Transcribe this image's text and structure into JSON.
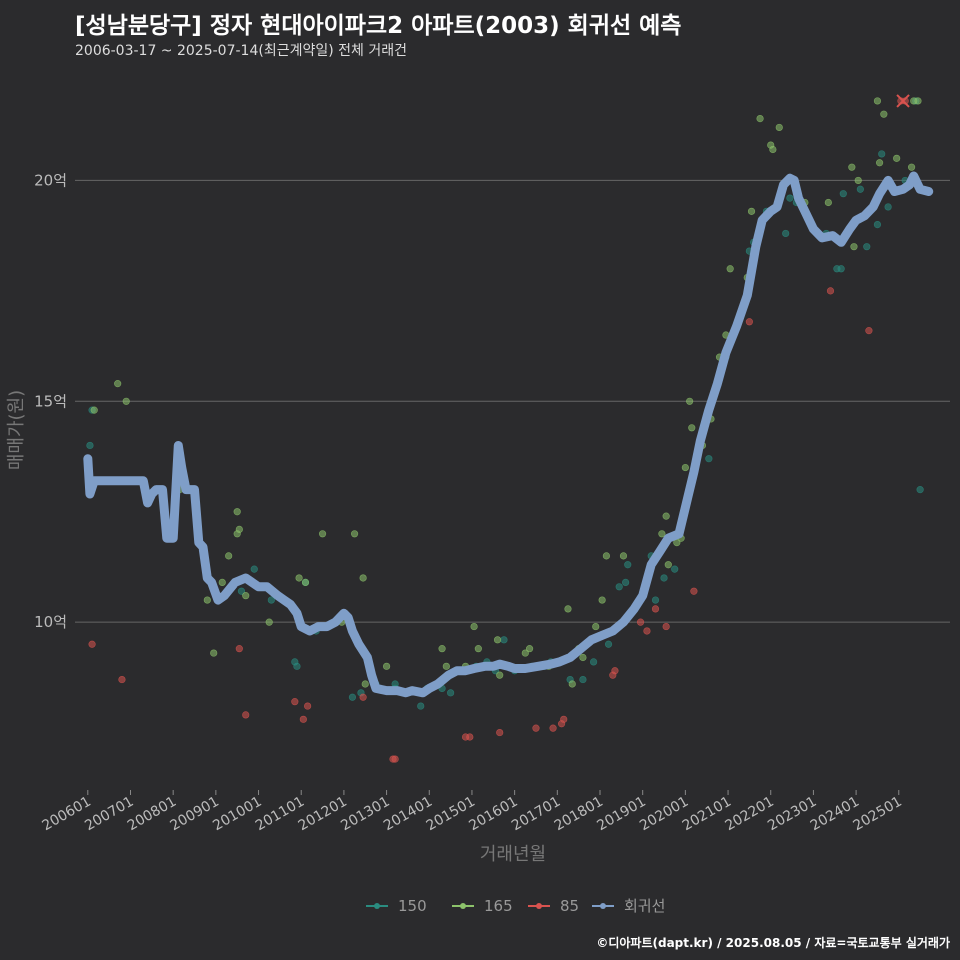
{
  "title": "[성남분당구] 정자 현대아이파크2 아파트(2003) 회귀선 예측",
  "subtitle": "2006-03-17 ~ 2025-07-14(최근계약일) 전체 거래건",
  "footer": "©디아파트(dapt.kr) / 2025.08.05 / 자료=국토교통부 실거래가",
  "colors": {
    "background": "#2b2b2d",
    "gridline": "#666666",
    "series_150": "#2a8c80",
    "series_165": "#8dc36b",
    "series_85": "#d9534f",
    "regression": "#7f9ec8"
  },
  "chart_data": {
    "type": "scatter",
    "title": "",
    "xlabel": "거래년월",
    "ylabel": "매매가(원)",
    "ylim": [
      6.2,
      22.5
    ],
    "xlim": [
      2005.7,
      2026.2
    ],
    "y_ticks": [
      {
        "value": 10,
        "label": "10억"
      },
      {
        "value": 15,
        "label": "15억"
      },
      {
        "value": 20,
        "label": "20억"
      }
    ],
    "x_ticks": [
      {
        "value": 2006,
        "label": "200601"
      },
      {
        "value": 2007,
        "label": "200701"
      },
      {
        "value": 2008,
        "label": "200801"
      },
      {
        "value": 2009,
        "label": "200901"
      },
      {
        "value": 2010,
        "label": "201001"
      },
      {
        "value": 2011,
        "label": "201101"
      },
      {
        "value": 2012,
        "label": "201201"
      },
      {
        "value": 2013,
        "label": "201301"
      },
      {
        "value": 2014,
        "label": "201401"
      },
      {
        "value": 2015,
        "label": "201501"
      },
      {
        "value": 2016,
        "label": "201601"
      },
      {
        "value": 2017,
        "label": "201701"
      },
      {
        "value": 2018,
        "label": "201801"
      },
      {
        "value": 2019,
        "label": "201901"
      },
      {
        "value": 2020,
        "label": "202001"
      },
      {
        "value": 2021,
        "label": "202101"
      },
      {
        "value": 2022,
        "label": "202201"
      },
      {
        "value": 2023,
        "label": "202301"
      },
      {
        "value": 2024,
        "label": "202401"
      },
      {
        "value": 2025,
        "label": "202501"
      }
    ],
    "legend": {
      "position": "bottom",
      "items": [
        {
          "label": "150",
          "color": "#2a8c80"
        },
        {
          "label": "165",
          "color": "#8dc36b"
        },
        {
          "label": "85",
          "color": "#d9534f"
        },
        {
          "label": "회귀선",
          "color": "#7f9ec8"
        }
      ]
    },
    "series": [
      {
        "name": "150",
        "points": [
          [
            2006.05,
            14.0
          ],
          [
            2006.1,
            14.8
          ],
          [
            2009.6,
            10.7
          ],
          [
            2009.9,
            11.2
          ],
          [
            2010.3,
            10.5
          ],
          [
            2010.85,
            9.1
          ],
          [
            2010.9,
            9.0
          ],
          [
            2011.35,
            9.8
          ],
          [
            2011.1,
            10.9
          ],
          [
            2012.4,
            8.4
          ],
          [
            2012.7,
            8.7
          ],
          [
            2012.75,
            8.6
          ],
          [
            2013.2,
            8.5
          ],
          [
            2013.2,
            8.6
          ],
          [
            2013.5,
            8.4
          ],
          [
            2013.8,
            8.1
          ],
          [
            2013.95,
            8.5
          ],
          [
            2014.3,
            8.5
          ],
          [
            2014.75,
            8.9
          ],
          [
            2015.1,
            9.0
          ],
          [
            2015.35,
            9.1
          ],
          [
            2015.55,
            8.9
          ],
          [
            2015.75,
            9.6
          ],
          [
            2016.0,
            8.9
          ],
          [
            2016.4,
            9.0
          ],
          [
            2016.7,
            9.0
          ],
          [
            2016.85,
            9.1
          ],
          [
            2017.3,
            8.7
          ],
          [
            2017.6,
            8.7
          ],
          [
            2017.85,
            9.1
          ],
          [
            2018.2,
            9.5
          ],
          [
            2018.45,
            10.8
          ],
          [
            2018.6,
            10.9
          ],
          [
            2018.65,
            11.3
          ],
          [
            2019.3,
            10.5
          ],
          [
            2019.5,
            11.0
          ],
          [
            2019.75,
            11.2
          ],
          [
            2020.1,
            13.0
          ],
          [
            2020.45,
            14.5
          ],
          [
            2020.55,
            13.7
          ],
          [
            2020.8,
            15.5
          ],
          [
            2020.95,
            16.0
          ],
          [
            2021.3,
            17.0
          ],
          [
            2021.5,
            18.4
          ],
          [
            2021.6,
            18.6
          ],
          [
            2021.9,
            19.3
          ],
          [
            2022.35,
            18.8
          ],
          [
            2022.45,
            19.6
          ],
          [
            2022.6,
            19.5
          ],
          [
            2023.3,
            18.8
          ],
          [
            2023.55,
            18.0
          ],
          [
            2023.65,
            18.0
          ],
          [
            2023.7,
            19.7
          ],
          [
            2024.1,
            19.8
          ],
          [
            2024.25,
            18.5
          ],
          [
            2024.5,
            19.0
          ],
          [
            2024.6,
            20.6
          ],
          [
            2024.75,
            19.4
          ],
          [
            2025.1,
            19.8
          ],
          [
            2025.15,
            20.0
          ],
          [
            2025.4,
            21.8
          ],
          [
            2025.5,
            13.0
          ],
          [
            2012.2,
            8.3
          ],
          [
            2019.2,
            11.5
          ],
          [
            2014.5,
            8.4
          ]
        ]
      },
      {
        "name": "165",
        "points": [
          [
            2006.15,
            14.8
          ],
          [
            2006.7,
            15.4
          ],
          [
            2006.9,
            15.0
          ],
          [
            2008.15,
            13.0
          ],
          [
            2008.8,
            10.5
          ],
          [
            2008.95,
            9.3
          ],
          [
            2009.15,
            10.9
          ],
          [
            2009.5,
            12.0
          ],
          [
            2009.55,
            12.1
          ],
          [
            2009.5,
            12.5
          ],
          [
            2009.3,
            11.5
          ],
          [
            2009.7,
            10.6
          ],
          [
            2010.25,
            10.0
          ],
          [
            2010.95,
            11.0
          ],
          [
            2011.1,
            10.9
          ],
          [
            2011.5,
            12.0
          ],
          [
            2011.95,
            10.0
          ],
          [
            2012.25,
            12.0
          ],
          [
            2012.45,
            11.0
          ],
          [
            2012.5,
            8.6
          ],
          [
            2013.0,
            9.0
          ],
          [
            2014.3,
            9.4
          ],
          [
            2014.4,
            9.0
          ],
          [
            2014.85,
            9.0
          ],
          [
            2015.05,
            9.9
          ],
          [
            2015.15,
            9.4
          ],
          [
            2015.25,
            9.0
          ],
          [
            2015.6,
            9.6
          ],
          [
            2015.65,
            8.8
          ],
          [
            2016.25,
            9.3
          ],
          [
            2016.35,
            9.4
          ],
          [
            2016.8,
            9.0
          ],
          [
            2017.25,
            10.3
          ],
          [
            2017.5,
            9.4
          ],
          [
            2017.6,
            9.2
          ],
          [
            2017.35,
            8.6
          ],
          [
            2017.9,
            9.9
          ],
          [
            2018.05,
            10.5
          ],
          [
            2018.15,
            11.5
          ],
          [
            2018.55,
            11.5
          ],
          [
            2019.45,
            12.0
          ],
          [
            2019.55,
            12.4
          ],
          [
            2019.6,
            11.3
          ],
          [
            2019.8,
            11.8
          ],
          [
            2019.9,
            11.9
          ],
          [
            2020.0,
            13.5
          ],
          [
            2020.1,
            15.0
          ],
          [
            2020.15,
            14.4
          ],
          [
            2020.4,
            14.0
          ],
          [
            2020.6,
            14.6
          ],
          [
            2020.8,
            16.0
          ],
          [
            2020.95,
            16.5
          ],
          [
            2021.05,
            18.0
          ],
          [
            2021.45,
            17.8
          ],
          [
            2021.55,
            19.3
          ],
          [
            2021.75,
            21.4
          ],
          [
            2022.0,
            20.8
          ],
          [
            2022.2,
            21.2
          ],
          [
            2022.05,
            20.7
          ],
          [
            2022.8,
            19.5
          ],
          [
            2023.35,
            19.5
          ],
          [
            2023.9,
            20.3
          ],
          [
            2024.05,
            20.0
          ],
          [
            2024.5,
            21.8
          ],
          [
            2024.55,
            20.4
          ],
          [
            2024.65,
            21.5
          ],
          [
            2024.95,
            20.5
          ],
          [
            2025.3,
            20.3
          ],
          [
            2025.45,
            21.8
          ],
          [
            2025.35,
            21.8
          ],
          [
            2023.95,
            18.5
          ],
          [
            2019.1,
            11.0
          ]
        ]
      },
      {
        "name": "85",
        "points": [
          [
            2006.1,
            9.5
          ],
          [
            2006.8,
            8.7
          ],
          [
            2009.55,
            9.4
          ],
          [
            2009.7,
            7.9
          ],
          [
            2010.85,
            8.2
          ],
          [
            2011.05,
            7.8
          ],
          [
            2011.15,
            8.1
          ],
          [
            2012.45,
            8.3
          ],
          [
            2013.15,
            6.9
          ],
          [
            2013.2,
            6.9
          ],
          [
            2014.85,
            7.4
          ],
          [
            2014.95,
            7.4
          ],
          [
            2015.65,
            7.5
          ],
          [
            2016.5,
            7.6
          ],
          [
            2016.9,
            7.6
          ],
          [
            2017.1,
            7.7
          ],
          [
            2017.15,
            7.8
          ],
          [
            2018.3,
            8.8
          ],
          [
            2018.35,
            8.9
          ],
          [
            2018.95,
            10.0
          ],
          [
            2019.1,
            9.8
          ],
          [
            2019.3,
            10.3
          ],
          [
            2019.55,
            9.9
          ],
          [
            2020.2,
            10.7
          ],
          [
            2020.8,
            15.6
          ],
          [
            2021.5,
            16.8
          ],
          [
            2023.4,
            17.5
          ],
          [
            2024.3,
            16.6
          ],
          [
            2025.05,
            21.8
          ],
          [
            2025.15,
            21.8
          ]
        ]
      }
    ],
    "regression": {
      "name": "회귀선",
      "points": [
        [
          2006.0,
          13.7
        ],
        [
          2006.05,
          12.9
        ],
        [
          2006.15,
          13.2
        ],
        [
          2006.5,
          13.2
        ],
        [
          2007.0,
          13.2
        ],
        [
          2007.3,
          13.2
        ],
        [
          2007.4,
          12.7
        ],
        [
          2007.5,
          12.9
        ],
        [
          2007.6,
          13.0
        ],
        [
          2007.75,
          13.0
        ],
        [
          2007.85,
          11.9
        ],
        [
          2008.0,
          11.9
        ],
        [
          2008.12,
          14.0
        ],
        [
          2008.2,
          13.5
        ],
        [
          2008.3,
          13.0
        ],
        [
          2008.5,
          13.0
        ],
        [
          2008.6,
          11.8
        ],
        [
          2008.7,
          11.7
        ],
        [
          2008.8,
          11.0
        ],
        [
          2008.9,
          10.9
        ],
        [
          2009.05,
          10.5
        ],
        [
          2009.2,
          10.6
        ],
        [
          2009.45,
          10.9
        ],
        [
          2009.7,
          11.0
        ],
        [
          2010.0,
          10.8
        ],
        [
          2010.2,
          10.8
        ],
        [
          2010.45,
          10.6
        ],
        [
          2010.6,
          10.5
        ],
        [
          2010.75,
          10.4
        ],
        [
          2010.9,
          10.2
        ],
        [
          2011.0,
          9.9
        ],
        [
          2011.2,
          9.8
        ],
        [
          2011.4,
          9.9
        ],
        [
          2011.6,
          9.9
        ],
        [
          2011.8,
          10.0
        ],
        [
          2012.0,
          10.2
        ],
        [
          2012.1,
          10.1
        ],
        [
          2012.2,
          9.8
        ],
        [
          2012.35,
          9.5
        ],
        [
          2012.55,
          9.2
        ],
        [
          2012.65,
          8.8
        ],
        [
          2012.75,
          8.5
        ],
        [
          2013.0,
          8.45
        ],
        [
          2013.25,
          8.45
        ],
        [
          2013.45,
          8.4
        ],
        [
          2013.6,
          8.45
        ],
        [
          2013.85,
          8.4
        ],
        [
          2014.0,
          8.5
        ],
        [
          2014.2,
          8.6
        ],
        [
          2014.45,
          8.8
        ],
        [
          2014.65,
          8.9
        ],
        [
          2014.85,
          8.9
        ],
        [
          2015.05,
          8.95
        ],
        [
          2015.3,
          9.0
        ],
        [
          2015.5,
          9.0
        ],
        [
          2015.65,
          9.05
        ],
        [
          2015.85,
          9.0
        ],
        [
          2016.0,
          8.95
        ],
        [
          2016.25,
          8.95
        ],
        [
          2016.55,
          9.0
        ],
        [
          2016.85,
          9.05
        ],
        [
          2017.05,
          9.1
        ],
        [
          2017.3,
          9.2
        ],
        [
          2017.55,
          9.4
        ],
        [
          2017.8,
          9.6
        ],
        [
          2018.05,
          9.7
        ],
        [
          2018.3,
          9.8
        ],
        [
          2018.55,
          10.0
        ],
        [
          2018.8,
          10.3
        ],
        [
          2019.0,
          10.6
        ],
        [
          2019.2,
          11.3
        ],
        [
          2019.4,
          11.6
        ],
        [
          2019.6,
          11.9
        ],
        [
          2019.85,
          12.0
        ],
        [
          2020.05,
          12.8
        ],
        [
          2020.2,
          13.4
        ],
        [
          2020.35,
          14.1
        ],
        [
          2020.55,
          14.8
        ],
        [
          2020.75,
          15.4
        ],
        [
          2020.95,
          16.1
        ],
        [
          2021.2,
          16.7
        ],
        [
          2021.45,
          17.4
        ],
        [
          2021.65,
          18.5
        ],
        [
          2021.8,
          19.1
        ],
        [
          2022.0,
          19.3
        ],
        [
          2022.15,
          19.4
        ],
        [
          2022.3,
          19.9
        ],
        [
          2022.45,
          20.05
        ],
        [
          2022.55,
          20.0
        ],
        [
          2022.65,
          19.6
        ],
        [
          2022.8,
          19.3
        ],
        [
          2023.0,
          18.9
        ],
        [
          2023.2,
          18.7
        ],
        [
          2023.45,
          18.75
        ],
        [
          2023.65,
          18.6
        ],
        [
          2023.85,
          18.9
        ],
        [
          2024.0,
          19.1
        ],
        [
          2024.2,
          19.2
        ],
        [
          2024.4,
          19.4
        ],
        [
          2024.55,
          19.7
        ],
        [
          2024.75,
          20.0
        ],
        [
          2024.9,
          19.75
        ],
        [
          2025.1,
          19.8
        ],
        [
          2025.25,
          19.9
        ],
        [
          2025.35,
          20.1
        ],
        [
          2025.5,
          19.8
        ],
        [
          2025.7,
          19.75
        ]
      ]
    },
    "highlight_point": {
      "x": 2025.1,
      "y": 21.8,
      "marker": "x-icon",
      "color": "#d9534f"
    }
  }
}
